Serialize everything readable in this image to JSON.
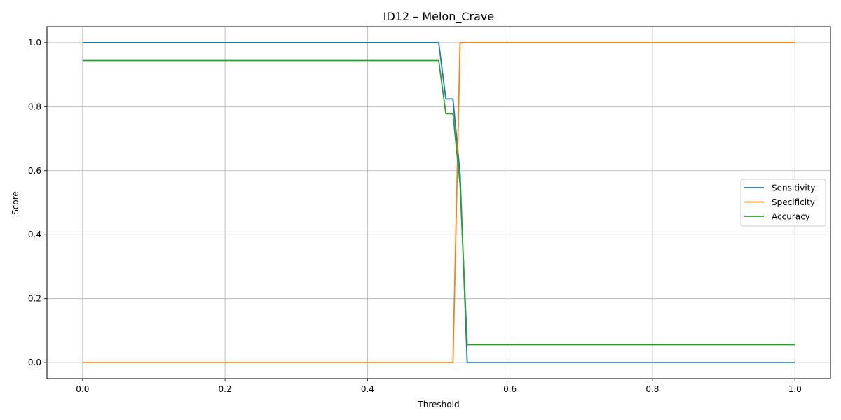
{
  "chart_data": {
    "type": "line",
    "title": "ID12 – Melon_Crave",
    "xlabel": "Threshold",
    "ylabel": "Score",
    "xlim": [
      -0.05,
      1.05
    ],
    "ylim": [
      -0.05,
      1.05
    ],
    "xticks": [
      0.0,
      0.2,
      0.4,
      0.6,
      0.8,
      1.0
    ],
    "xtick_labels": [
      "0.0",
      "0.2",
      "0.4",
      "0.6",
      "0.8",
      "1.0"
    ],
    "yticks": [
      0.0,
      0.2,
      0.4,
      0.6,
      0.8,
      1.0
    ],
    "ytick_labels": [
      "0.0",
      "0.2",
      "0.4",
      "0.6",
      "0.8",
      "1.0"
    ],
    "grid": true,
    "legend_position": "center right",
    "series": [
      {
        "name": "Sensitivity",
        "color": "#1f77b4",
        "x": [
          0.0,
          0.5,
          0.51,
          0.52,
          0.53,
          0.54,
          1.0
        ],
        "y": [
          1.0,
          1.0,
          0.824,
          0.824,
          0.588,
          0.0,
          0.0
        ]
      },
      {
        "name": "Specificity",
        "color": "#ff7f0e",
        "x": [
          0.0,
          0.52,
          0.53,
          1.0
        ],
        "y": [
          0.0,
          0.0,
          1.0,
          1.0
        ]
      },
      {
        "name": "Accuracy",
        "color": "#2ca02c",
        "x": [
          0.0,
          0.5,
          0.51,
          0.52,
          0.53,
          0.54,
          1.0
        ],
        "y": [
          0.944,
          0.944,
          0.778,
          0.778,
          0.556,
          0.056,
          0.056
        ]
      }
    ]
  }
}
